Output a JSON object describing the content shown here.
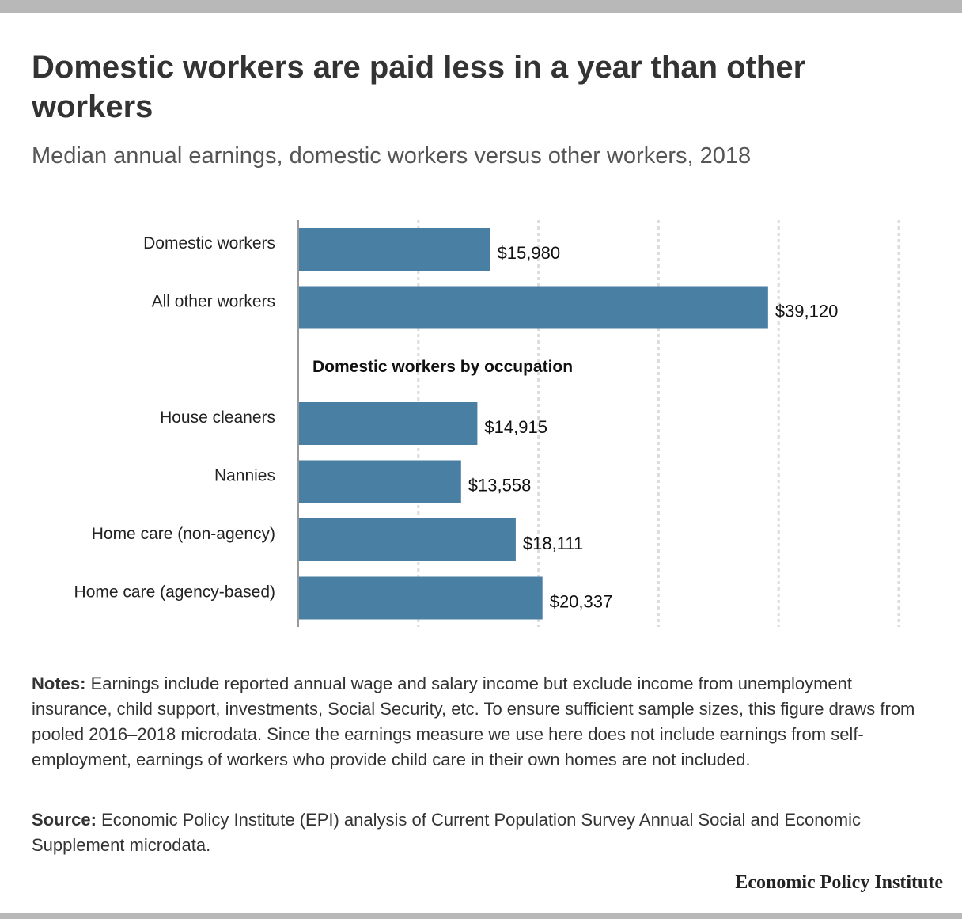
{
  "title": "Domestic workers are paid less in a year than other workers",
  "subtitle": "Median annual earnings, domestic workers versus other workers, 2018",
  "chart_data": {
    "type": "bar",
    "orientation": "horizontal",
    "xlim": [
      0,
      50000
    ],
    "grid_step": 10000,
    "grid": true,
    "bar_color": "#4a7fa4",
    "section_label": "Domestic workers by occupation",
    "groups": [
      {
        "categories": [
          "Domestic workers",
          "All other workers"
        ],
        "values": [
          15980,
          39120
        ],
        "labels": [
          "$15,980",
          "$39,120"
        ]
      },
      {
        "categories": [
          "House cleaners",
          "Nannies",
          "Home care (non-agency)",
          "Home care (agency-based)"
        ],
        "values": [
          14915,
          13558,
          18111,
          20337
        ],
        "labels": [
          "$14,915",
          "$13,558",
          "$18,111",
          "$20,337"
        ]
      }
    ]
  },
  "notes": {
    "label": "Notes:",
    "text": " Earnings include reported annual wage and salary income but exclude income from unemployment insurance, child support, investments, Social Security, etc. To ensure sufficient sample sizes, this figure draws from pooled 2016–2018 microdata. Since the earnings measure we use here does not include earnings from self-employment, earnings of workers who provide child care in their own homes are not included."
  },
  "source": {
    "label": "Source:",
    "text": " Economic Policy Institute (EPI) analysis of Current Population Survey Annual Social and Economic Supplement microdata."
  },
  "brand": "Economic Policy Institute"
}
